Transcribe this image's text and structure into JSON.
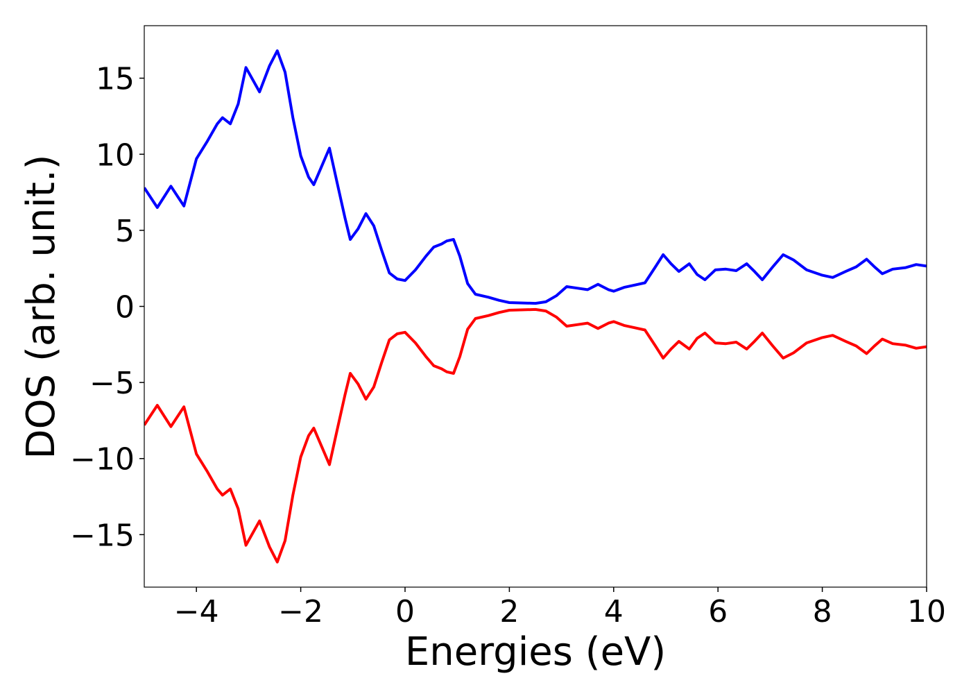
{
  "chart_data": {
    "type": "line",
    "xlabel": "Energies (eV)",
    "ylabel": "DOS (arb. unit.)",
    "x": [
      -5,
      -4.75,
      -4.49,
      -4.24,
      -4.0,
      -3.8,
      -3.6,
      -3.5,
      -3.35,
      -3.2,
      -3.05,
      -2.79,
      -2.6,
      -2.45,
      -2.3,
      -2.15,
      -2.0,
      -1.85,
      -1.75,
      -1.6,
      -1.45,
      -1.3,
      -1.15,
      -1.05,
      -0.9,
      -0.75,
      -0.6,
      -0.45,
      -0.3,
      -0.15,
      0,
      0.2,
      0.4,
      0.55,
      0.7,
      0.8,
      0.93,
      1.05,
      1.2,
      1.35,
      1.6,
      1.8,
      2.0,
      2.5,
      2.7,
      2.9,
      3.1,
      3.3,
      3.5,
      3.7,
      3.9,
      4.0,
      4.2,
      4.4,
      4.6,
      4.8,
      4.95,
      5.1,
      5.25,
      5.45,
      5.6,
      5.75,
      5.95,
      6.15,
      6.35,
      6.55,
      6.7,
      6.85,
      7.05,
      7.25,
      7.45,
      7.7,
      8.0,
      8.2,
      8.45,
      8.65,
      8.85,
      9.0,
      9.15,
      9.35,
      9.6,
      9.8,
      10
    ],
    "series": [
      {
        "color": "#0000ff",
        "values": [
          7.8,
          6.5,
          7.9,
          6.6,
          9.7,
          10.8,
          12.0,
          12.4,
          12.0,
          13.3,
          15.7,
          14.1,
          15.8,
          16.8,
          15.4,
          12.4,
          9.9,
          8.5,
          8.0,
          9.2,
          10.4,
          8.1,
          5.8,
          4.4,
          5.1,
          6.1,
          5.3,
          3.7,
          2.2,
          1.8,
          1.7,
          2.4,
          3.3,
          3.9,
          4.1,
          4.3,
          4.4,
          3.3,
          1.5,
          0.8,
          0.6,
          0.4,
          0.25,
          0.2,
          0.3,
          0.7,
          1.3,
          1.2,
          1.1,
          1.45,
          1.1,
          1.0,
          1.25,
          1.4,
          1.55,
          2.6,
          3.4,
          2.8,
          2.3,
          2.8,
          2.1,
          1.75,
          2.4,
          2.45,
          2.35,
          2.8,
          2.3,
          1.75,
          2.6,
          3.4,
          3.05,
          2.4,
          2.05,
          1.9,
          2.3,
          2.6,
          3.1,
          2.6,
          2.15,
          2.45,
          2.55,
          2.75,
          2.65
        ]
      },
      {
        "color": "#ff0000",
        "values": [
          -7.8,
          -6.5,
          -7.9,
          -6.6,
          -9.7,
          -10.8,
          -12.0,
          -12.4,
          -12.0,
          -13.3,
          -15.7,
          -14.1,
          -15.8,
          -16.8,
          -15.4,
          -12.4,
          -9.9,
          -8.5,
          -8.0,
          -9.2,
          -10.4,
          -8.1,
          -5.8,
          -4.4,
          -5.1,
          -6.1,
          -5.3,
          -3.7,
          -2.2,
          -1.8,
          -1.7,
          -2.4,
          -3.3,
          -3.9,
          -4.1,
          -4.3,
          -4.4,
          -3.3,
          -1.5,
          -0.8,
          -0.6,
          -0.4,
          -0.25,
          -0.2,
          -0.3,
          -0.7,
          -1.3,
          -1.2,
          -1.1,
          -1.45,
          -1.1,
          -1.0,
          -1.25,
          -1.4,
          -1.55,
          -2.6,
          -3.4,
          -2.8,
          -2.3,
          -2.8,
          -2.1,
          -1.75,
          -2.4,
          -2.45,
          -2.35,
          -2.8,
          -2.3,
          -1.75,
          -2.6,
          -3.4,
          -3.05,
          -2.4,
          -2.05,
          -1.9,
          -2.3,
          -2.6,
          -3.1,
          -2.6,
          -2.15,
          -2.45,
          -2.55,
          -2.75,
          -2.65
        ]
      }
    ],
    "xlim": [
      -5,
      10
    ],
    "xticks": [
      {
        "value": -4,
        "label": "−4"
      },
      {
        "value": -2,
        "label": "−2"
      },
      0,
      2,
      4,
      6,
      8,
      10
    ],
    "ylim": [
      -18.45,
      18.45
    ],
    "yticks": [
      {
        "value": -15,
        "label": "−15"
      },
      {
        "value": -10,
        "label": "−10"
      },
      {
        "value": -5,
        "label": "−5"
      },
      0,
      5,
      10,
      15
    ],
    "grid": false
  }
}
